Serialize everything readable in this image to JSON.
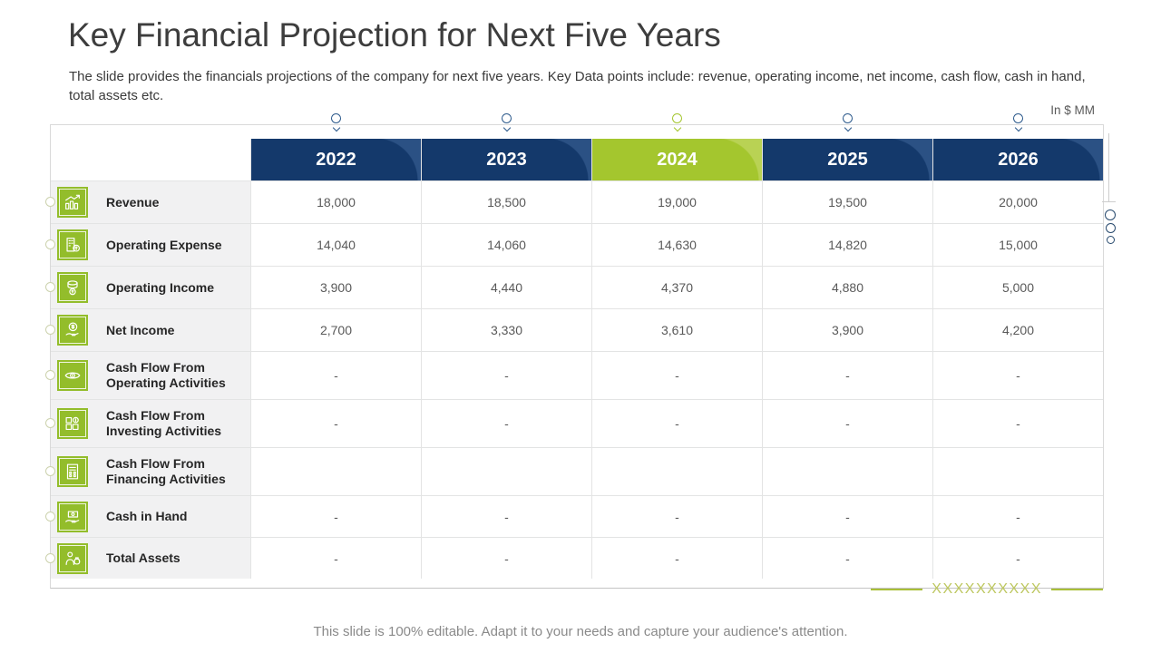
{
  "slide": {
    "title": "Key Financial Projection for Next Five Years",
    "description": "The slide provides the financials projections of the company for next five years. Key Data points include: revenue, operating income, net income, cash flow, cash in hand, total assets etc.",
    "unit_label": "In $ MM",
    "placeholder_text": "XXXXXXXXXX",
    "footer_note": "This slide is 100% editable. Adapt it to your needs and capture your audience's attention."
  },
  "chart_data": {
    "type": "table",
    "title": "Key Financial Projection for Next Five Years",
    "unit": "In $ MM",
    "columns": [
      "2022",
      "2023",
      "2024",
      "2025",
      "2026"
    ],
    "highlighted_column": "2024",
    "rows": [
      {
        "icon": "revenue-growth-chart-icon",
        "label": "Revenue",
        "values": [
          "18,000",
          "18,500",
          "19,000",
          "19,500",
          "20,000"
        ]
      },
      {
        "icon": "building-expense-icon",
        "label": "Operating Expense",
        "values": [
          "14,040",
          "14,060",
          "14,630",
          "14,820",
          "15,000"
        ]
      },
      {
        "icon": "coin-stack-icon",
        "label": "Operating Income",
        "values": [
          "3,900",
          "4,440",
          "4,370",
          "4,880",
          "5,000"
        ]
      },
      {
        "icon": "dollar-coin-hand-icon",
        "label": "Net Income",
        "values": [
          "2,700",
          "3,330",
          "3,610",
          "3,900",
          "4,200"
        ]
      },
      {
        "icon": "eye-dollar-icon",
        "label": "Cash Flow From Operating Activities",
        "values": [
          "-",
          "-",
          "-",
          "-",
          "-"
        ]
      },
      {
        "icon": "investment-boxes-icon",
        "label": "Cash Flow From Investing Activities",
        "values": [
          "-",
          "-",
          "-",
          "-",
          "-"
        ]
      },
      {
        "icon": "finance-document-icon",
        "label": "Cash Flow From Financing Activities",
        "values": [
          "",
          "",
          "",
          "",
          ""
        ]
      },
      {
        "icon": "cash-in-hand-icon",
        "label": "Cash in Hand",
        "values": [
          "-",
          "-",
          "-",
          "-",
          "-"
        ]
      },
      {
        "icon": "person-assets-icon",
        "label": "Total Assets",
        "values": [
          "-",
          "-",
          "-",
          "-",
          "-"
        ]
      }
    ]
  },
  "colors": {
    "header_navy": "#14396b",
    "header_navy_highlight": "#2b5184",
    "header_green": "#a4c62e",
    "header_green_highlight": "#b9d254",
    "icon_green": "#93bd2b",
    "label_row_bg": "#f1f1f2",
    "placeholder_green": "#bdc75f",
    "pin_blue": "#2d5a8c"
  }
}
